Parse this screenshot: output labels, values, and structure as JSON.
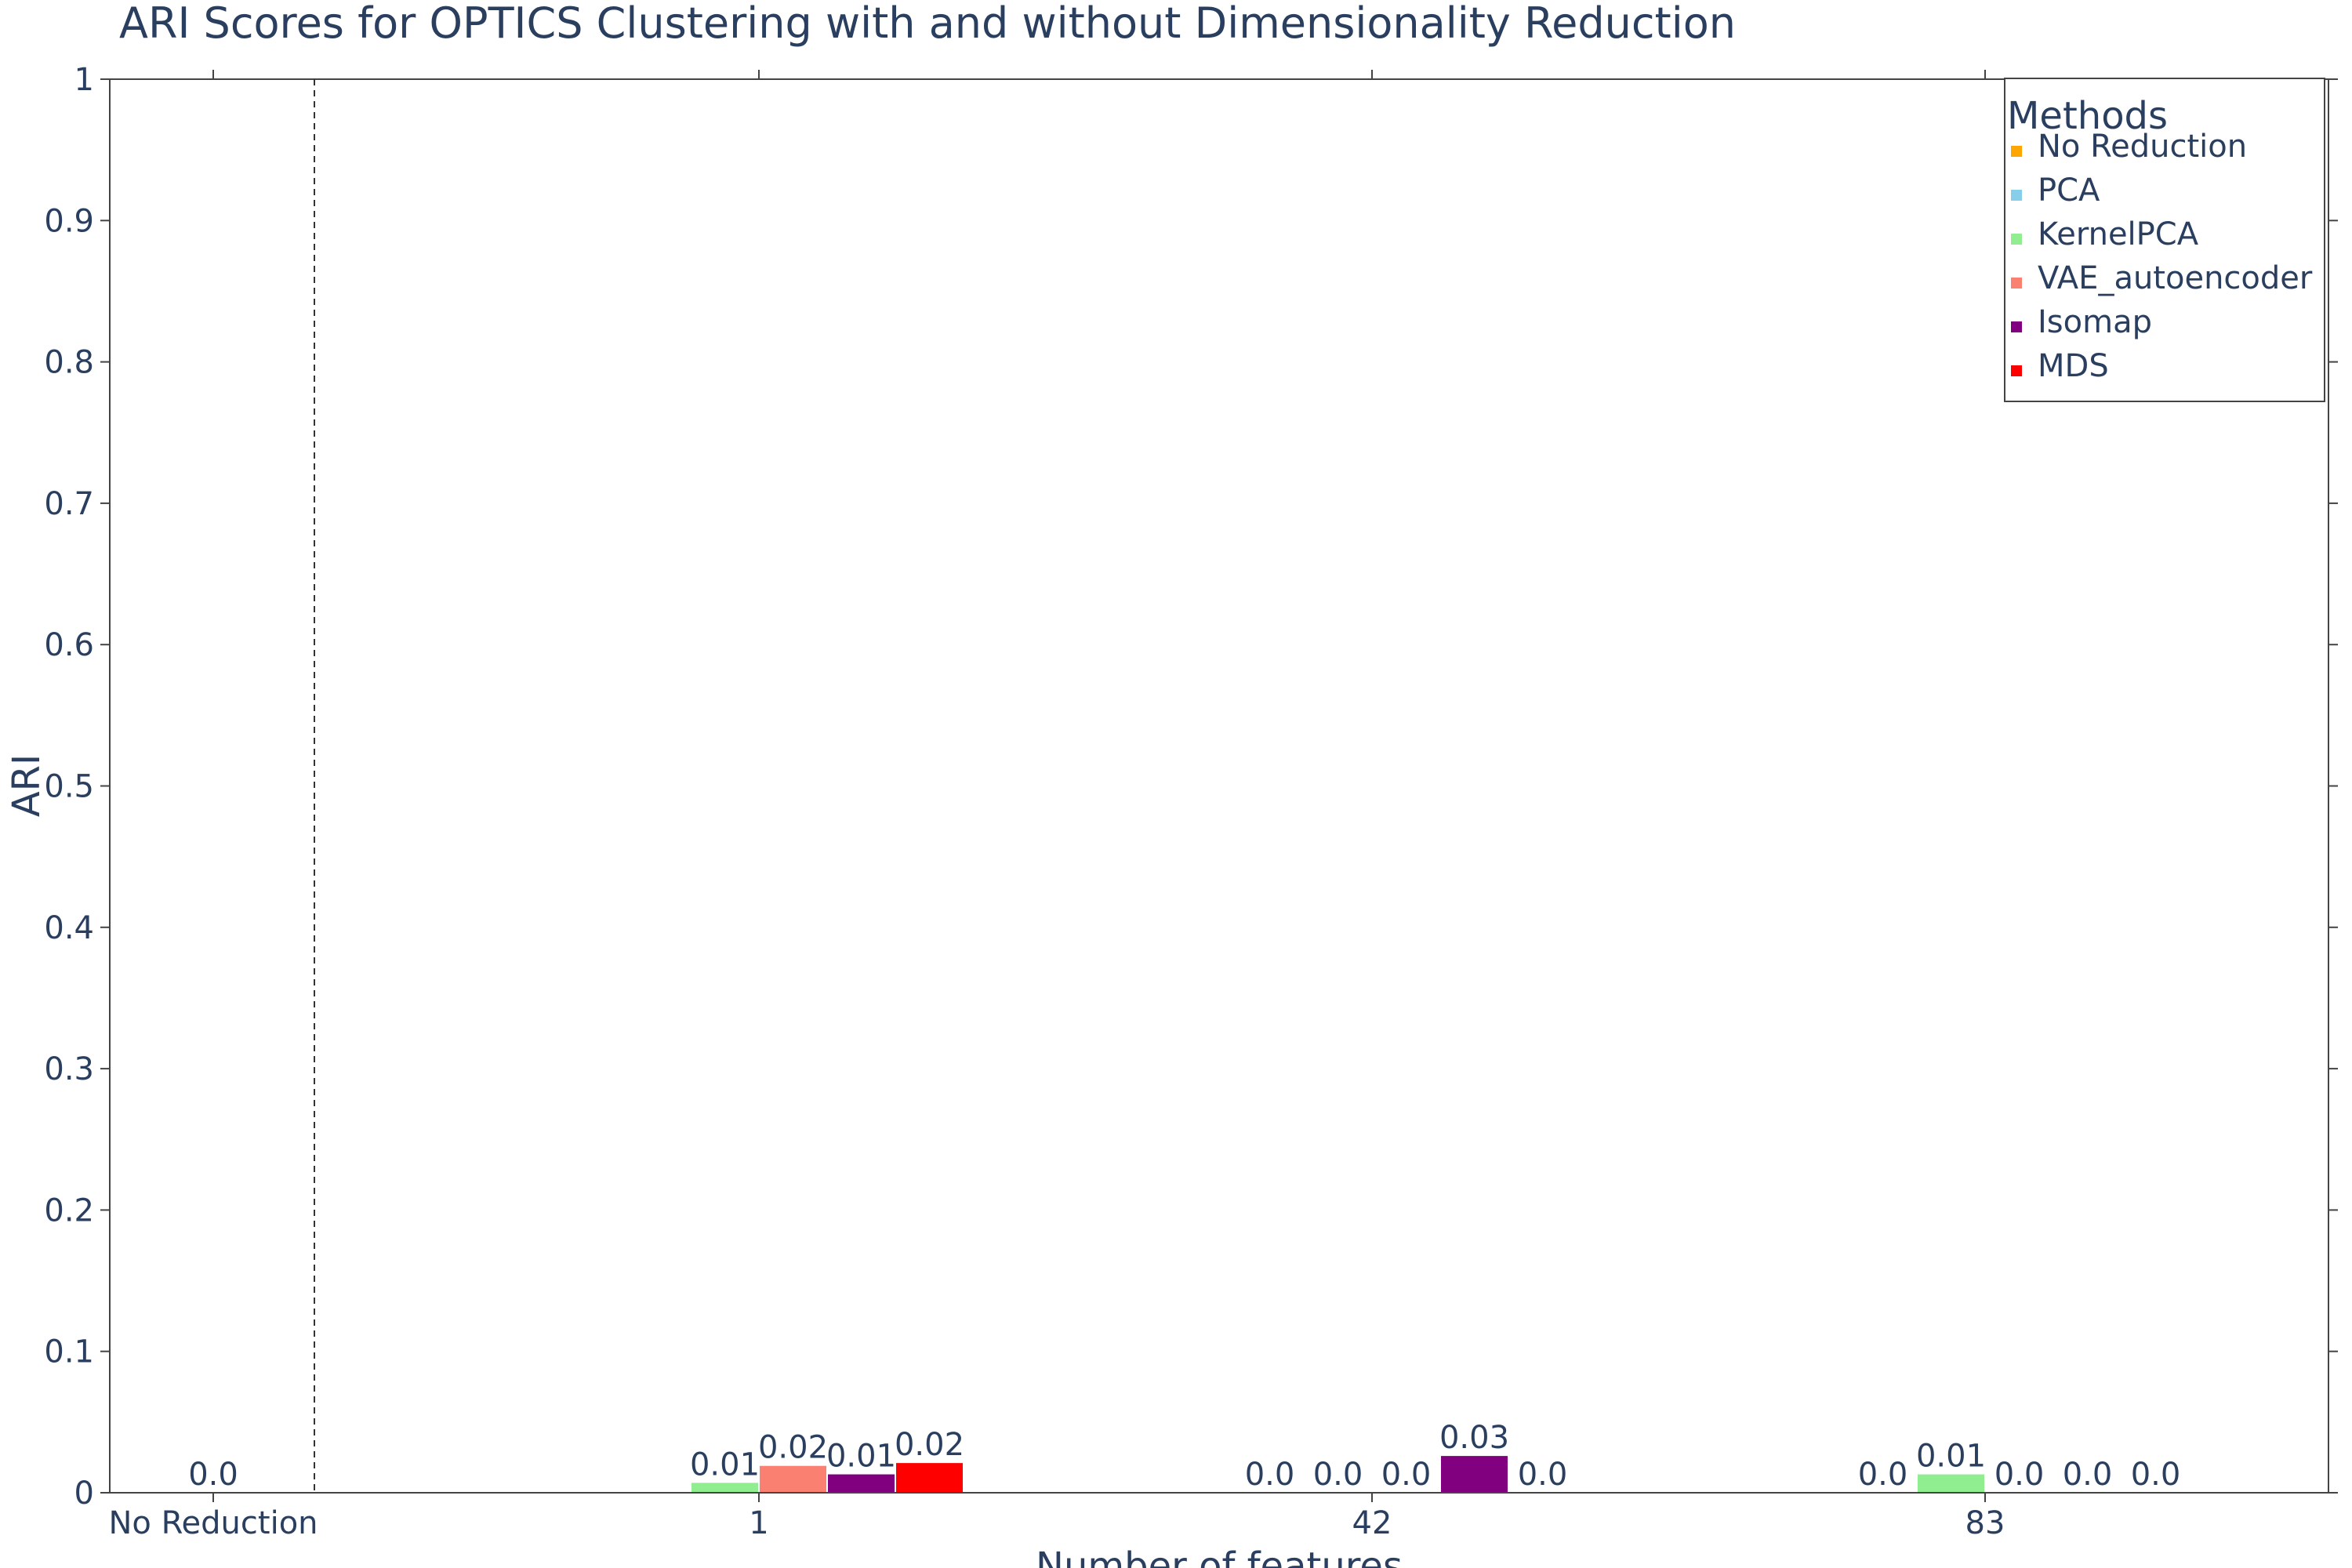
{
  "chart_data": {
    "type": "bar",
    "title": "ARI Scores for OPTICS Clustering with and without Dimensionality Reduction",
    "xlabel": "Number of features",
    "ylabel": "ARI",
    "ylim": [
      0,
      1
    ],
    "yticks": [
      "0",
      "0.1",
      "0.2",
      "0.3",
      "0.4",
      "0.5",
      "0.6",
      "0.7",
      "0.8",
      "0.9",
      "1"
    ],
    "categories": [
      "No Reduction",
      "1",
      "42",
      "83"
    ],
    "grid": false,
    "divider_after_category": "No Reduction",
    "legend": {
      "title": "Methods",
      "placement": "top-right"
    },
    "series": [
      {
        "name": "No Reduction",
        "color": "#FFA500",
        "values": [
          0.0,
          null,
          null,
          null
        ],
        "labels": [
          "0.0",
          "",
          "",
          ""
        ]
      },
      {
        "name": "PCA",
        "color": "#87CEEB",
        "values": [
          null,
          null,
          0.0,
          0.0
        ],
        "labels": [
          "",
          "",
          "0.0",
          "0.0"
        ]
      },
      {
        "name": "KernelPCA",
        "color": "#90EE90",
        "values": [
          null,
          0.007,
          0.0,
          0.013
        ],
        "labels": [
          "",
          "0.01",
          "0.0",
          "0.01"
        ]
      },
      {
        "name": "VAE_autoencoder",
        "color": "#FA8072",
        "values": [
          null,
          0.019,
          0.0,
          0.0
        ],
        "labels": [
          "",
          "0.02",
          "0.0",
          "0.0"
        ]
      },
      {
        "name": "Isomap",
        "color": "#800080",
        "values": [
          null,
          0.013,
          0.026,
          0.0
        ],
        "labels": [
          "",
          "0.01",
          "0.03",
          "0.0"
        ]
      },
      {
        "name": "MDS",
        "color": "#FF0000",
        "values": [
          null,
          0.021,
          0.0,
          0.0
        ],
        "labels": [
          "",
          "0.02",
          "0.0",
          "0.0"
        ]
      }
    ]
  }
}
